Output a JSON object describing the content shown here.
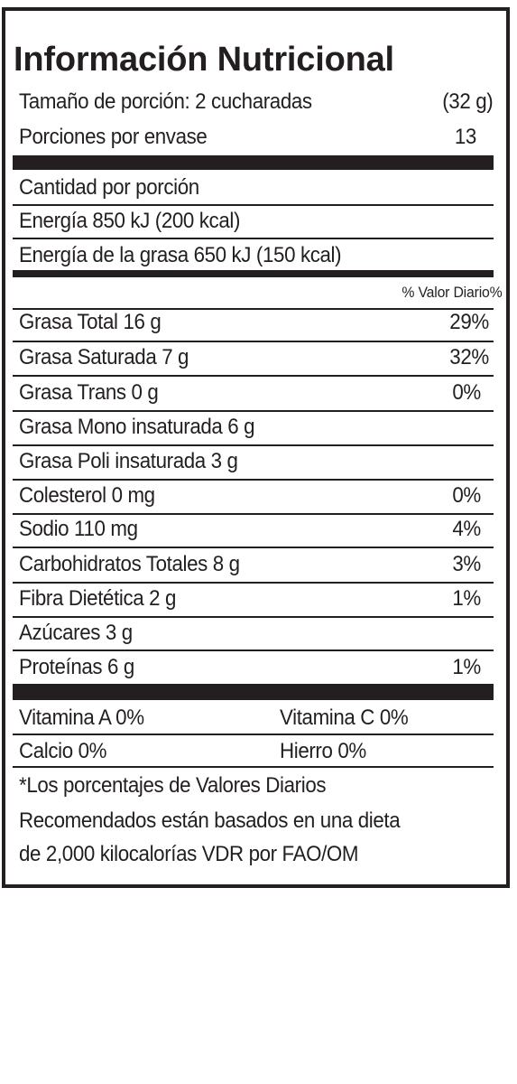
{
  "title": "Información Nutricional",
  "serving": {
    "label": "Tamaño de porción: 2 cucharadas",
    "value": "(32 g)"
  },
  "servings_per_container": {
    "label": "Porciones por envase",
    "value": "13"
  },
  "amount_per_serving": "Cantidad por porción",
  "energy": "Energía 850 kJ (200 kcal)",
  "energy_fat": "Energía de la grasa 650 kJ (150 kcal)",
  "daily_value_header": "% Valor Diario%",
  "nutrients": [
    {
      "name": "Grasa Total 16 g",
      "dv": "29%"
    },
    {
      "name": "Grasa Saturada 7 g",
      "dv": "32%"
    },
    {
      "name": "Grasa Trans 0 g",
      "dv": "0%"
    },
    {
      "name": "Grasa Mono insaturada 6 g",
      "dv": ""
    },
    {
      "name": "Grasa Poli insaturada 3 g",
      "dv": ""
    },
    {
      "name": "Colesterol 0 mg",
      "dv": "0%"
    },
    {
      "name": "Sodio 110 mg",
      "dv": "4%"
    },
    {
      "name": "Carbohidratos Totales 8 g",
      "dv": "3%"
    },
    {
      "name": "Fibra Dietética 2 g",
      "dv": "1%"
    },
    {
      "name": "Azúcares 3 g",
      "dv": ""
    },
    {
      "name": "Proteínas 6 g",
      "dv": "1%"
    }
  ],
  "vitamins": {
    "row1": {
      "left": "Vitamina A 0%",
      "right": "Vitamina C 0%"
    },
    "row2": {
      "left": "Calcio 0%",
      "right": "Hierro 0%"
    }
  },
  "footnote": {
    "line1": "*Los porcentajes de Valores Diarios",
    "line2": "Recomendados están basados en una dieta",
    "line3": "de 2,000 kilocalorías VDR por FAO/OM"
  }
}
